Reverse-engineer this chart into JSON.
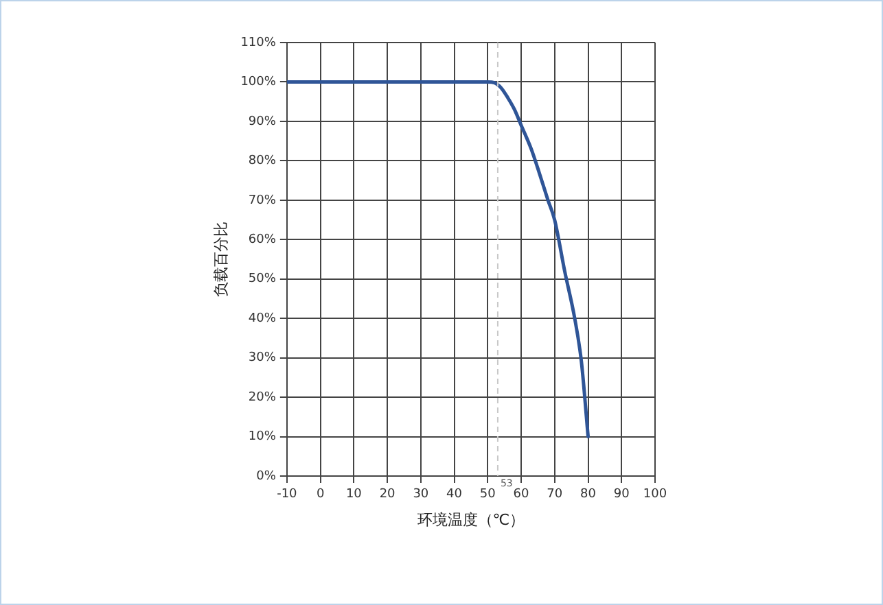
{
  "chart_data": {
    "type": "line",
    "xlabel": "环境温度（℃）",
    "ylabel": "负载百分比",
    "series": [
      {
        "color": "#2f5597",
        "x": [
          -10,
          50,
          52,
          54,
          56,
          58,
          60,
          63,
          65,
          68,
          70,
          73,
          76,
          78,
          80
        ],
        "values": [
          100,
          100,
          99.8,
          98.5,
          96,
          93,
          89,
          83,
          78,
          70,
          65,
          52,
          40,
          29,
          10
        ]
      }
    ],
    "xlim": [
      -10,
      100
    ],
    "xticks": [
      -10,
      0,
      10,
      20,
      30,
      40,
      50,
      60,
      70,
      80,
      90,
      100
    ],
    "ylim": [
      0,
      110
    ],
    "yticks": [
      {
        "value": 0,
        "label": "0%"
      },
      {
        "value": 10,
        "label": "10%"
      },
      {
        "value": 20,
        "label": "20%"
      },
      {
        "value": 30,
        "label": "30%"
      },
      {
        "value": 40,
        "label": "40%"
      },
      {
        "value": 50,
        "label": "50%"
      },
      {
        "value": 60,
        "label": "60%"
      },
      {
        "value": 70,
        "label": "70%"
      },
      {
        "value": 80,
        "label": "80%"
      },
      {
        "value": 90,
        "label": "90%"
      },
      {
        "value": 100,
        "label": "100%"
      },
      {
        "value": 110,
        "label": "110%"
      }
    ],
    "ref_lines": [
      {
        "axis": "x",
        "value": 53,
        "label": "53",
        "color": "#c8c8c8",
        "line_style": "dashed"
      }
    ],
    "grid": true,
    "marker": "none",
    "line_style": "solid",
    "legend": false
  }
}
